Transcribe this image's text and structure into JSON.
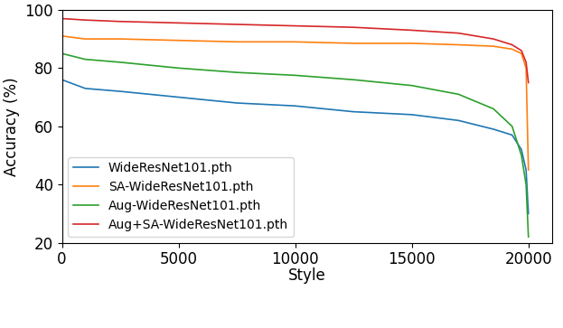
{
  "chart_data": {
    "type": "line",
    "x_label": "Style",
    "y_label": "Accuracy (%)",
    "x": [
      0,
      1000,
      2500,
      5000,
      7500,
      10000,
      12500,
      15000,
      17000,
      18500,
      19300,
      19700,
      19900,
      20000
    ],
    "series": [
      {
        "name": "WideResNet101.pth",
        "color": "#1f77b4",
        "values": [
          76,
          73,
          72,
          70,
          68,
          67,
          65,
          64,
          62,
          59,
          57,
          52,
          45,
          30
        ]
      },
      {
        "name": "SA-WideResNet101.pth",
        "color": "#ff7f0e",
        "values": [
          91,
          90,
          90,
          89.5,
          89,
          89,
          88.5,
          88.5,
          88,
          87.5,
          86.5,
          85,
          80,
          45
        ]
      },
      {
        "name": "Aug-WideResNet101.pth",
        "color": "#2ca02c",
        "values": [
          85,
          83,
          82,
          80,
          78.5,
          77.5,
          76,
          74,
          71,
          66,
          60,
          50,
          40,
          22
        ]
      },
      {
        "name": "Aug+SA-WideResNet101.pth",
        "color": "#d62728",
        "values": [
          97,
          96.5,
          96,
          95.5,
          95,
          94.5,
          94,
          93,
          92,
          90,
          88,
          86,
          82,
          75
        ]
      }
    ],
    "xlim": [
      0,
      21000
    ],
    "ylim": [
      20,
      100
    ],
    "xticks": [
      0,
      5000,
      10000,
      15000,
      20000
    ],
    "yticks": [
      20,
      40,
      60,
      80,
      100
    ],
    "grid": false,
    "legend": "lower left"
  }
}
